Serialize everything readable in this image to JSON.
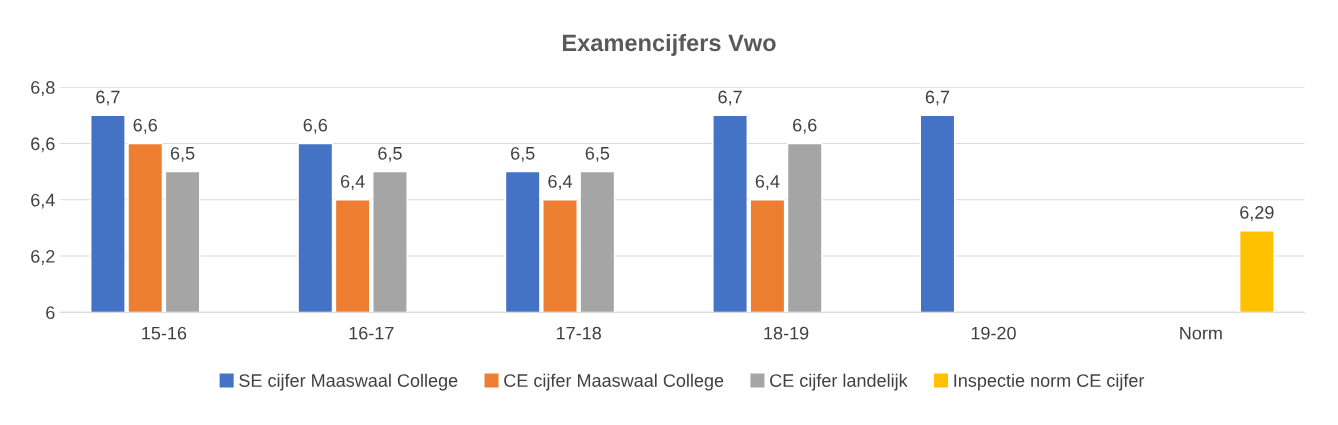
{
  "chart_data": {
    "type": "bar",
    "title": "Examencijfers Vwo",
    "categories": [
      "15-16",
      "16-17",
      "17-18",
      "18-19",
      "19-20",
      "Norm"
    ],
    "series": [
      {
        "name": "SE cijfer Maaswaal College",
        "color": "#4472c4",
        "values": [
          6.7,
          6.6,
          6.5,
          6.7,
          6.7,
          null
        ],
        "value_labels": [
          "6,7",
          "6,6",
          "6,5",
          "6,7",
          "6,7",
          null
        ]
      },
      {
        "name": "CE cijfer Maaswaal College",
        "color": "#ed7d31",
        "values": [
          6.6,
          6.4,
          6.4,
          6.4,
          null,
          null
        ],
        "value_labels": [
          "6,6",
          "6,4",
          "6,4",
          "6,4",
          null,
          null
        ]
      },
      {
        "name": "CE cijfer landelijk",
        "color": "#a5a5a5",
        "values": [
          6.5,
          6.5,
          6.5,
          6.6,
          null,
          null
        ],
        "value_labels": [
          "6,5",
          "6,5",
          "6,5",
          "6,6",
          null,
          null
        ]
      },
      {
        "name": "Inspectie norm CE cijfer",
        "color": "#ffc000",
        "values": [
          null,
          null,
          null,
          null,
          null,
          6.29
        ],
        "value_labels": [
          null,
          null,
          null,
          null,
          null,
          "6,29"
        ]
      }
    ],
    "ylim": [
      6,
      6.8
    ],
    "yticks": [
      6,
      {
        "value": 6.2,
        "label": "6,2"
      },
      {
        "value": 6.4,
        "label": "6,4"
      },
      {
        "value": 6.6,
        "label": "6,6"
      },
      {
        "value": 6.8,
        "label": "6,8"
      }
    ],
    "grid": "y",
    "legend": "bottom"
  }
}
